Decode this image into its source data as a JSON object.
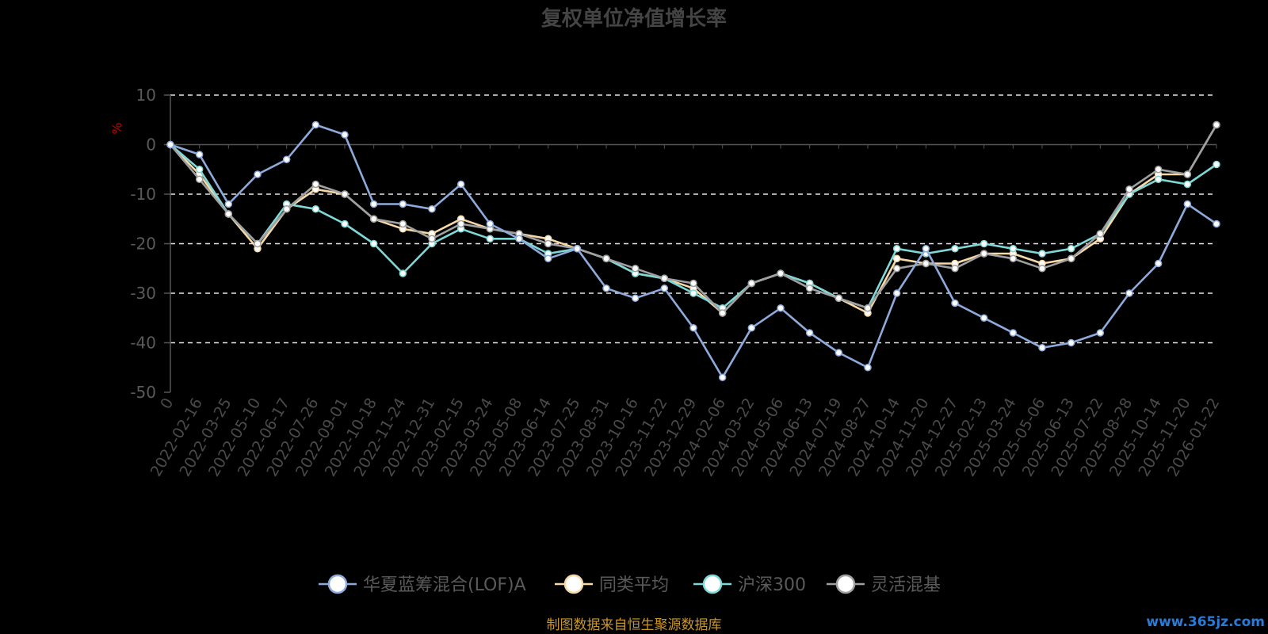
{
  "chart_data": {
    "type": "line",
    "title": "复权单位净值增长率",
    "ylabel": "%",
    "ylim": [
      -50,
      10
    ],
    "yticks": [
      10,
      0,
      -10,
      -20,
      -30,
      -40,
      -50
    ],
    "grid": true,
    "legend_position": "bottom",
    "x": [
      "0",
      "2022-02-16",
      "2022-03-25",
      "2022-05-10",
      "2022-06-17",
      "2022-07-26",
      "2022-09-01",
      "2022-10-18",
      "2022-11-24",
      "2022-12-31",
      "2023-02-15",
      "2023-03-24",
      "2023-05-08",
      "2023-06-14",
      "2023-07-25",
      "2023-08-31",
      "2023-10-16",
      "2023-11-22",
      "2023-12-29",
      "2024-02-06",
      "2024-03-22",
      "2024-05-06",
      "2024-06-13",
      "2024-07-19",
      "2024-08-27",
      "2024-10-14",
      "2024-11-20",
      "2024-12-27",
      "2025-02-13",
      "2025-03-24",
      "2025-05-06",
      "2025-06-13",
      "2025-07-22",
      "2025-08-28",
      "2025-10-14",
      "2025-11-20",
      "2026-01-22"
    ],
    "series": [
      {
        "name": "华夏蓝筹混合(LOF)A",
        "color": "#8eaadb",
        "values": [
          0,
          -2,
          -12,
          -6,
          -3,
          4,
          2,
          -12,
          -12,
          -13,
          -8,
          -16,
          -19,
          -23,
          -21,
          -29,
          -31,
          -29,
          -37,
          -47,
          -37,
          -33,
          -38,
          -42,
          -45,
          -30,
          -21,
          -32,
          -35,
          -38,
          -41,
          -40,
          -38,
          -30,
          -24,
          -12,
          -16
        ]
      },
      {
        "name": "同类平均",
        "color": "#f7d9a8",
        "values": [
          0,
          -6,
          -14,
          -21,
          -13,
          -9,
          -10,
          -15,
          -17,
          -18,
          -15,
          -17,
          -18,
          -19,
          -21,
          -23,
          -26,
          -27,
          -29,
          -34,
          -28,
          -26,
          -28,
          -31,
          -34,
          -23,
          -24,
          -24,
          -22,
          -22,
          -24,
          -23,
          -19,
          -10,
          -6,
          -6,
          4
        ]
      },
      {
        "name": "沪深300",
        "color": "#7fd8d8",
        "values": [
          0,
          -5,
          -14,
          -20,
          -12,
          -13,
          -16,
          -20,
          -26,
          -20,
          -17,
          -19,
          -19,
          -22,
          -21,
          -23,
          -26,
          -27,
          -30,
          -33,
          -28,
          -26,
          -28,
          -31,
          -33,
          -21,
          -22,
          -21,
          -20,
          -21,
          -22,
          -21,
          -18,
          -10,
          -7,
          -8,
          -4
        ]
      },
      {
        "name": "灵活混基",
        "color": "#a0a0a0",
        "values": [
          0,
          -7,
          -14,
          -20,
          -13,
          -8,
          -10,
          -15,
          -16,
          -19,
          -16,
          -17,
          -18,
          -20,
          -21,
          -23,
          -25,
          -27,
          -28,
          -34,
          -28,
          -26,
          -29,
          -31,
          -33,
          -25,
          -24,
          -25,
          -22,
          -23,
          -25,
          -23,
          -18,
          -9,
          -5,
          -6,
          4
        ]
      }
    ]
  },
  "source_note": "制图数据来自恒生聚源数据库",
  "watermark": "www.365jz.com"
}
